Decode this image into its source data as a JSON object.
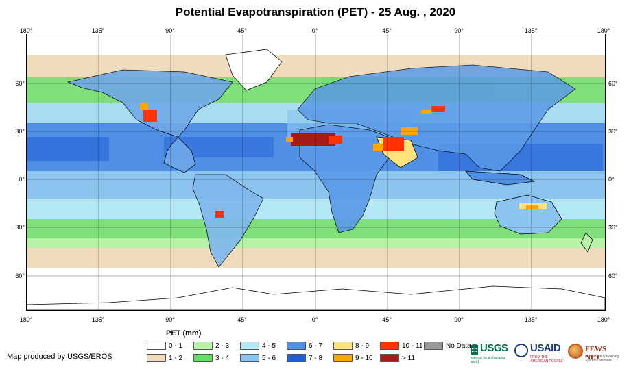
{
  "title": "Potential Evapotranspiration (PET) - 25 Aug. , 2020",
  "axes": {
    "longitude_labels": [
      "180°",
      "135°",
      "90°",
      "45°",
      "0°",
      "45°",
      "90°",
      "135°",
      "180°"
    ],
    "latitude_labels": [
      "60°",
      "30°",
      "0°",
      "30°",
      "60°"
    ]
  },
  "legend": {
    "title": "PET (mm)",
    "items": [
      {
        "label": "0 - 1",
        "color": "#ffffff"
      },
      {
        "label": "1 - 2",
        "color": "#eedcbd"
      },
      {
        "label": "2 - 3",
        "color": "#b7f2a6"
      },
      {
        "label": "3 - 4",
        "color": "#66dd66"
      },
      {
        "label": "4 - 5",
        "color": "#b4e8f4"
      },
      {
        "label": "5 - 6",
        "color": "#8cc4f0"
      },
      {
        "label": "6 - 7",
        "color": "#4f8fe6"
      },
      {
        "label": "7 - 8",
        "color": "#1f5fd6"
      },
      {
        "label": "8 - 9",
        "color": "#ffe27a"
      },
      {
        "label": "9 - 10",
        "color": "#ffa500"
      },
      {
        "label": "10 - 11",
        "color": "#ff3300"
      },
      {
        "label": "> 11",
        "color": "#a51b1b"
      },
      {
        "label": "No Data",
        "color": "#999999"
      }
    ]
  },
  "credit": "Map produced by USGS/EROS",
  "logos": {
    "usgs": {
      "name": "USGS",
      "tagline": "science for a changing world"
    },
    "usaid": {
      "name": "USAID",
      "tagline": "FROM THE AMERICAN PEOPLE"
    },
    "fews": {
      "name": "FEWS NET",
      "tagline": "Famine Early Warning Systems Network"
    }
  }
}
